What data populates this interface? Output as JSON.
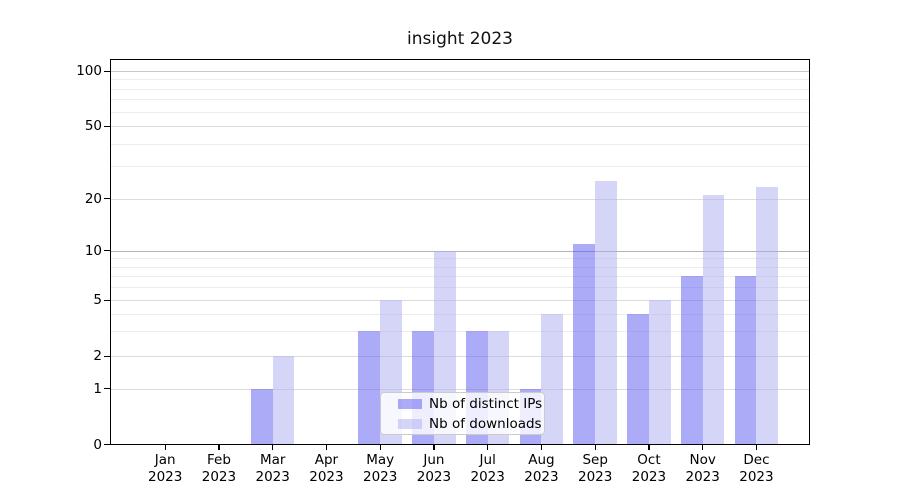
{
  "figure": {
    "title": "insight 2023"
  },
  "chart_data": {
    "type": "bar",
    "title": "insight 2023",
    "categories": [
      "Jan 2023",
      "Feb 2023",
      "Mar 2023",
      "Apr 2023",
      "May 2023",
      "Jun 2023",
      "Jul 2023",
      "Aug 2023",
      "Sep 2023",
      "Oct 2023",
      "Nov 2023",
      "Dec 2023"
    ],
    "series": [
      {
        "name": "Nb of distinct IPs",
        "color": "rgba(88,88,240,0.5)",
        "solid_color": "#ababf7",
        "values": [
          0,
          0,
          1,
          0,
          3,
          3,
          3,
          1,
          11,
          4,
          7,
          7
        ]
      },
      {
        "name": "Nb of downloads",
        "color": "rgba(172,172,240,0.5)",
        "solid_color": "#d8d8f9",
        "values": [
          0,
          0,
          2,
          0,
          5,
          10,
          3,
          4,
          25,
          5,
          21,
          23
        ]
      }
    ],
    "xlabel": "",
    "ylabel": "",
    "yscale": "symlog-like",
    "yticks_major": [
      0,
      1,
      2,
      5,
      10,
      20,
      50,
      100
    ],
    "yticks_minor": [
      3,
      4,
      6,
      7,
      8,
      9,
      30,
      40,
      60,
      70,
      80,
      90
    ],
    "ylim": [
      0,
      120
    ],
    "grid": true,
    "legend_position": "inside bottom center-right"
  },
  "colors": {
    "grid_minor": "#ececec",
    "grid_major": "#dcdcdc",
    "grid_10": "#b3b3b3",
    "grid_100": "#c8c8c8",
    "spine": "#000000",
    "background": "#ffffff"
  }
}
